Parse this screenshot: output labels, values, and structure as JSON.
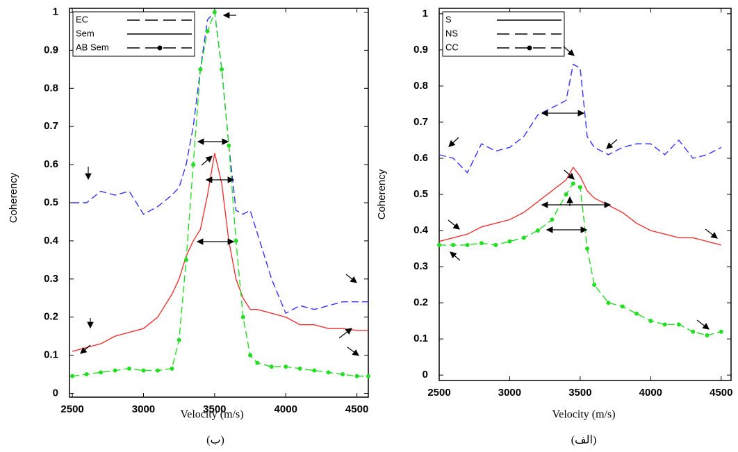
{
  "chart_data": [
    {
      "type": "line",
      "caption": "(ب)",
      "xlabel": "Velocity (m/s)",
      "ylabel": "Coherency",
      "x": [
        2500,
        2600,
        2700,
        2800,
        2900,
        3000,
        3100,
        3200,
        3250,
        3300,
        3350,
        3400,
        3450,
        3500,
        3550,
        3600,
        3650,
        3700,
        3750,
        3800,
        3900,
        4000,
        4100,
        4200,
        4300,
        4400,
        4500,
        4580
      ],
      "series": [
        {
          "name": "EC",
          "color": "#3333ff",
          "line_style": "dashed",
          "marker": false,
          "values": [
            0.5,
            0.5,
            0.53,
            0.52,
            0.53,
            0.47,
            0.49,
            0.52,
            0.54,
            0.6,
            0.7,
            0.85,
            0.98,
            1.0,
            0.85,
            0.65,
            0.48,
            0.47,
            0.48,
            0.42,
            0.3,
            0.21,
            0.23,
            0.22,
            0.23,
            0.24,
            0.24,
            0.24
          ]
        },
        {
          "name": "Sem",
          "color": "#ee3333",
          "line_style": "solid",
          "marker": false,
          "values": [
            0.11,
            0.12,
            0.13,
            0.15,
            0.16,
            0.17,
            0.2,
            0.26,
            0.3,
            0.36,
            0.4,
            0.43,
            0.52,
            0.63,
            0.55,
            0.4,
            0.3,
            0.25,
            0.22,
            0.22,
            0.21,
            0.2,
            0.18,
            0.18,
            0.17,
            0.17,
            0.165,
            0.165
          ]
        },
        {
          "name": "AB Sem",
          "color": "#22dd22",
          "line_style": "dashed",
          "marker": true,
          "values": [
            0.045,
            0.05,
            0.055,
            0.06,
            0.065,
            0.06,
            0.06,
            0.065,
            0.14,
            0.35,
            0.6,
            0.85,
            0.95,
            1.0,
            0.85,
            0.65,
            0.4,
            0.2,
            0.1,
            0.08,
            0.07,
            0.07,
            0.065,
            0.06,
            0.055,
            0.05,
            0.045,
            0.045
          ]
        }
      ],
      "xlim": [
        2480,
        4580
      ],
      "ylim": [
        -0.01,
        1.01
      ],
      "xticks": [
        2500,
        3000,
        3500,
        4000,
        4500
      ],
      "yticks": [
        0,
        0.1,
        0.2,
        0.3,
        0.4,
        0.5,
        0.6,
        0.7,
        0.8,
        0.9,
        1
      ],
      "legend": "upper left"
    },
    {
      "type": "line",
      "caption": "(الف)",
      "xlabel": "Velocity (m/s)",
      "ylabel": "Coherency",
      "x": [
        2500,
        2600,
        2700,
        2800,
        2900,
        3000,
        3100,
        3200,
        3300,
        3400,
        3450,
        3500,
        3550,
        3600,
        3700,
        3800,
        3900,
        4000,
        4100,
        4200,
        4300,
        4400,
        4500
      ],
      "series": [
        {
          "name": "S",
          "color": "#ee3333",
          "line_style": "solid",
          "marker": false,
          "values": [
            0.37,
            0.38,
            0.39,
            0.41,
            0.42,
            0.43,
            0.45,
            0.48,
            0.51,
            0.54,
            0.575,
            0.55,
            0.51,
            0.49,
            0.47,
            0.45,
            0.42,
            0.4,
            0.39,
            0.38,
            0.38,
            0.37,
            0.36
          ]
        },
        {
          "name": "NS",
          "color": "#3333ff",
          "line_style": "dashed",
          "marker": false,
          "values": [
            0.61,
            0.6,
            0.56,
            0.64,
            0.62,
            0.63,
            0.66,
            0.72,
            0.74,
            0.76,
            0.86,
            0.85,
            0.66,
            0.63,
            0.61,
            0.63,
            0.64,
            0.64,
            0.61,
            0.65,
            0.6,
            0.61,
            0.63
          ]
        },
        {
          "name": "CC",
          "color": "#22dd22",
          "line_style": "dashed",
          "marker": true,
          "values": [
            0.36,
            0.36,
            0.36,
            0.365,
            0.36,
            0.37,
            0.38,
            0.4,
            0.43,
            0.5,
            0.53,
            0.52,
            0.35,
            0.25,
            0.2,
            0.19,
            0.17,
            0.15,
            0.14,
            0.14,
            0.12,
            0.11,
            0.12
          ]
        }
      ],
      "xlim": [
        2500,
        4570
      ],
      "ylim": [
        -0.015,
        1.015
      ],
      "xticks": [
        2500,
        3000,
        3500,
        4000,
        4500
      ],
      "yticks": [
        0,
        0.1,
        0.2,
        0.3,
        0.4,
        0.5,
        0.6,
        0.7,
        0.8,
        0.9,
        1
      ],
      "legend": "upper left"
    }
  ]
}
